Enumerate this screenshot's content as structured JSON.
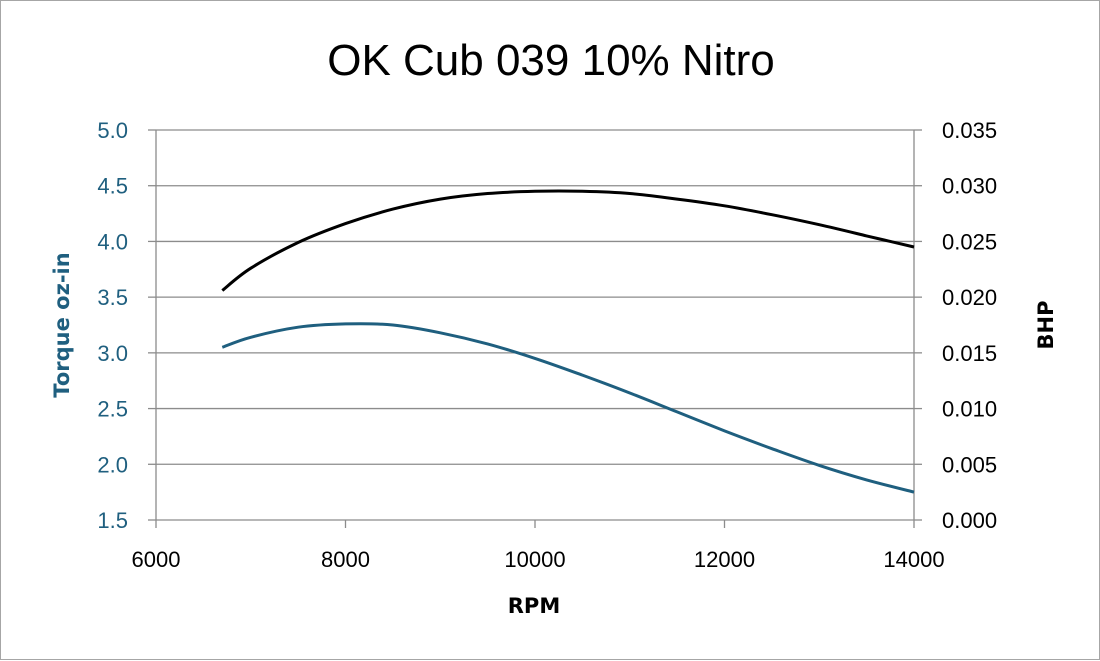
{
  "chart_data": {
    "type": "line",
    "title": "OK Cub 039 10% Nitro",
    "xlabel": "RPM",
    "ylabel_left": "Torque oz-in",
    "ylabel_right": "BHP",
    "xlim": [
      6000,
      14000
    ],
    "ylim_left": [
      1.5,
      5.0
    ],
    "ylim_right": [
      0.0,
      0.035
    ],
    "x_ticks": [
      "6000",
      "8000",
      "10000",
      "12000",
      "14000"
    ],
    "y_left_ticks": [
      "1.5",
      "2.0",
      "2.5",
      "3.0",
      "3.5",
      "4.0",
      "4.5",
      "5.0"
    ],
    "y_right_ticks": [
      "0.000",
      "0.005",
      "0.010",
      "0.015",
      "0.020",
      "0.025",
      "0.030",
      "0.035"
    ],
    "grid": true,
    "series": [
      {
        "axis": "left",
        "color": "#1f5f7f",
        "x": [
          6700,
          7000,
          7500,
          8000,
          8500,
          9000,
          9500,
          10000,
          10500,
          11000,
          11500,
          12000,
          12500,
          13000,
          13500,
          14000
        ],
        "values": [
          3.05,
          3.14,
          3.23,
          3.26,
          3.25,
          3.18,
          3.08,
          2.95,
          2.8,
          2.64,
          2.47,
          2.3,
          2.14,
          1.99,
          1.86,
          1.75
        ]
      },
      {
        "axis": "right",
        "color": "#000000",
        "x": [
          6700,
          7000,
          7500,
          8000,
          8500,
          9000,
          9500,
          10000,
          10500,
          11000,
          11500,
          12000,
          12500,
          13000,
          13500,
          14000
        ],
        "values": [
          0.0206,
          0.0226,
          0.0249,
          0.0266,
          0.0279,
          0.0288,
          0.0293,
          0.0295,
          0.0295,
          0.0293,
          0.0288,
          0.0282,
          0.0274,
          0.0265,
          0.0255,
          0.0245
        ]
      }
    ]
  }
}
